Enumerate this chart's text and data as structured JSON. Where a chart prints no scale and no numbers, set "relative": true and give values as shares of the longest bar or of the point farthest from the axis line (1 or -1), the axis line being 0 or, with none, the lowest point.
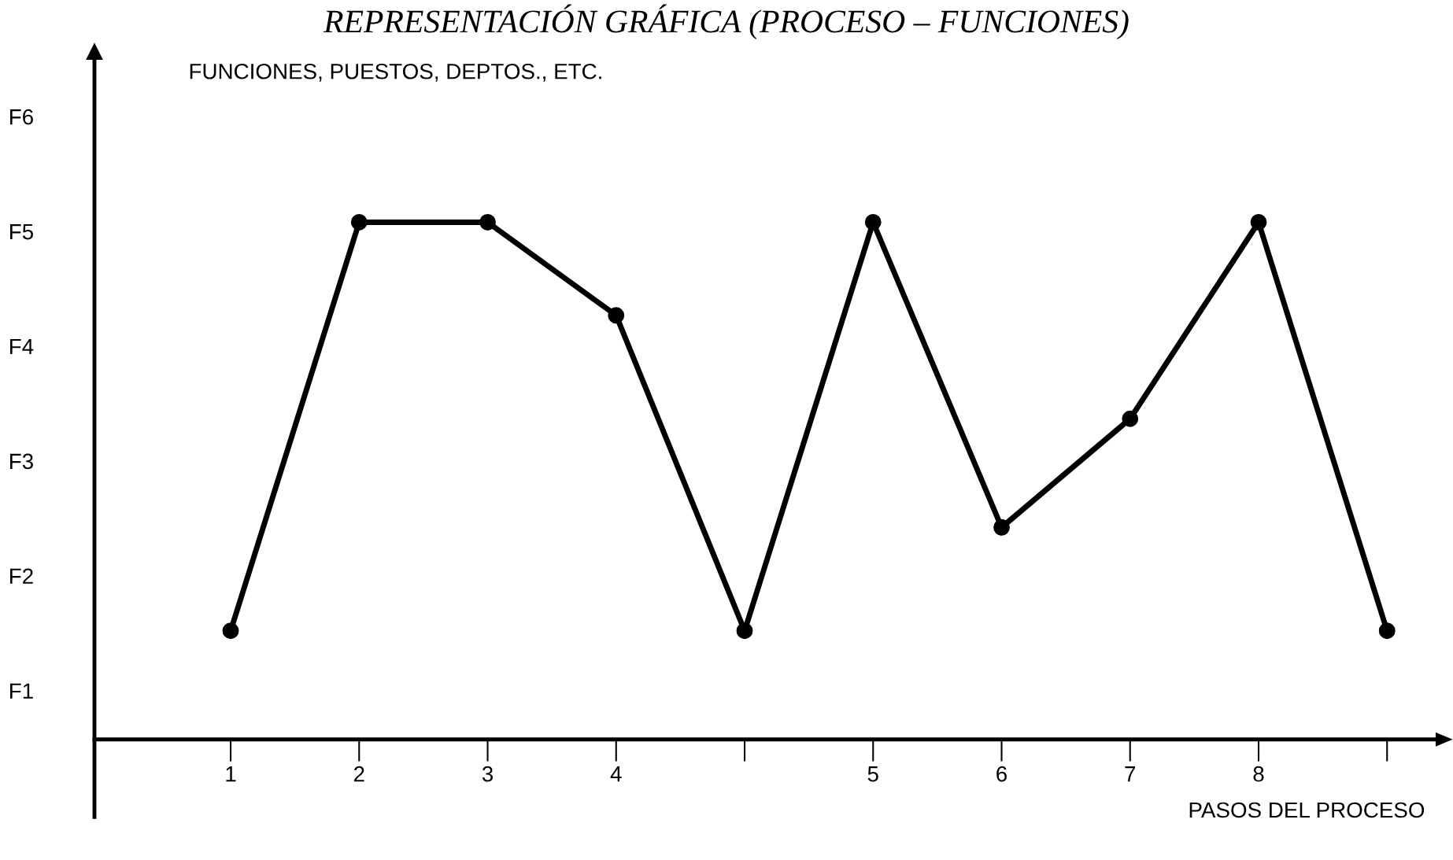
{
  "chart_data": {
    "type": "line",
    "title": "REPRESENTACIÓN GRÁFICA (PROCESO – FUNCIONES)",
    "xlabel": "PASOS DEL PROCESO",
    "categories": [
      "1",
      "2",
      "3",
      "4",
      null,
      "5",
      "6",
      "7",
      "8",
      null
    ],
    "series": [
      {
        "color": "#000000",
        "values": [
          0.21,
          1,
          1,
          0.82,
          0.21,
          1,
          0.41,
          0.62,
          1,
          0.21
        ]
      }
    ],
    "relative": true,
    "annotations": [
      "FUNCIONES, PUESTOS, DEPTOS., ETC.",
      "F1",
      "F2",
      "F3",
      "F4",
      "F5",
      "F6"
    ],
    "grid": false,
    "legend": false,
    "marker": "circle",
    "line_style": "solid"
  }
}
